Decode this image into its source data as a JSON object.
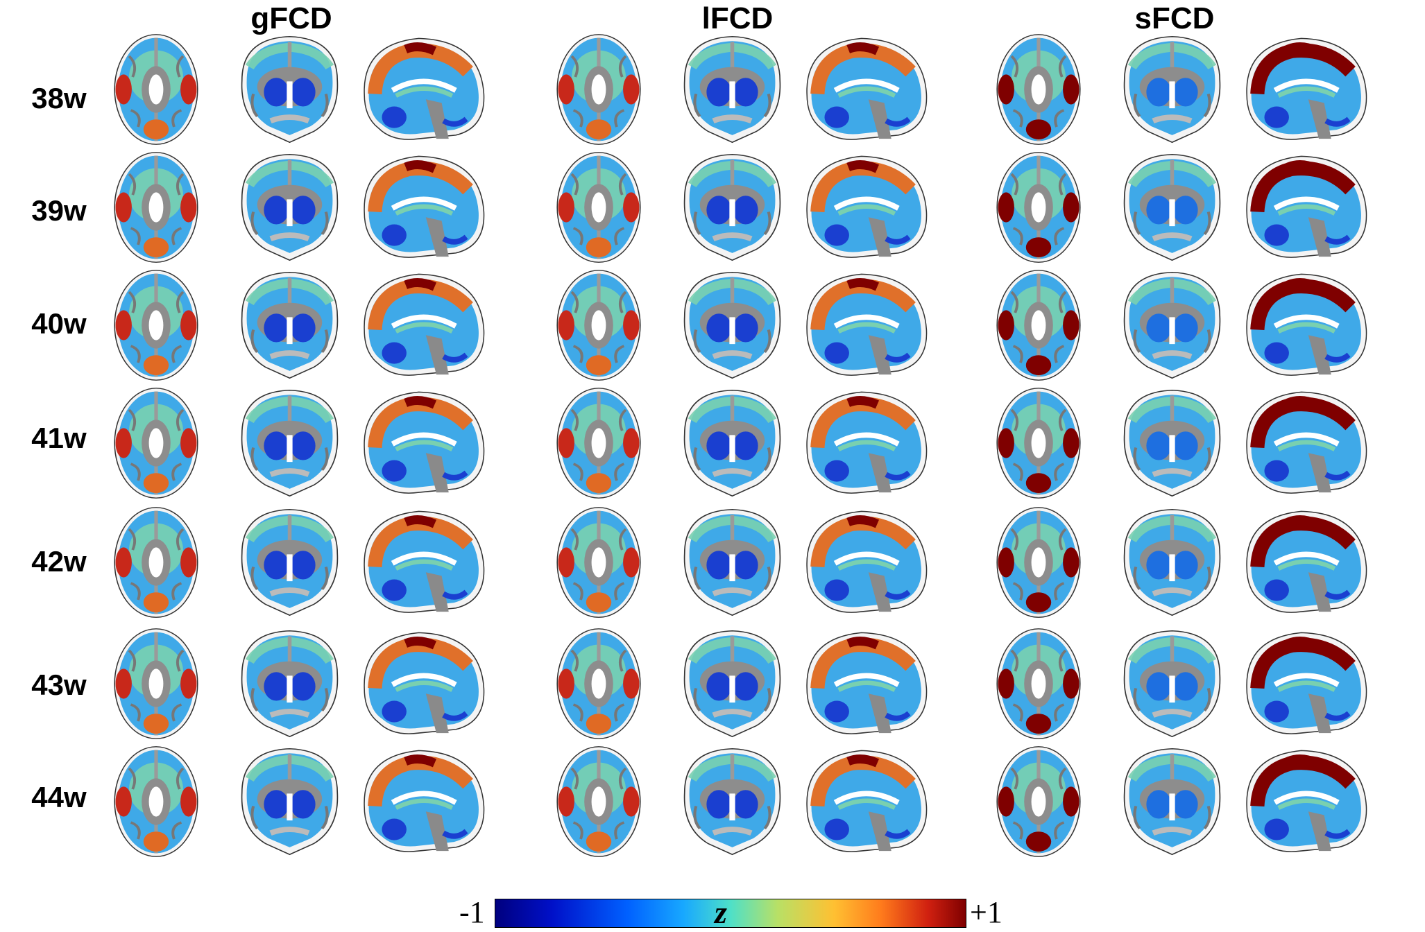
{
  "figure": {
    "columns": [
      {
        "title": "gFCD"
      },
      {
        "title": "lFCD"
      },
      {
        "title": "sFCD"
      }
    ],
    "rows": [
      {
        "label": "38w"
      },
      {
        "label": "39w"
      },
      {
        "label": "40w"
      },
      {
        "label": "41w"
      },
      {
        "label": "42w"
      },
      {
        "label": "43w"
      },
      {
        "label": "44w"
      }
    ],
    "views": [
      "axial",
      "coronal",
      "sagittal"
    ],
    "colorbar": {
      "min_label": "-1",
      "max_label": "+1",
      "variable": "z",
      "min_color": "#00007f",
      "max_color": "#7f0000"
    }
  }
}
